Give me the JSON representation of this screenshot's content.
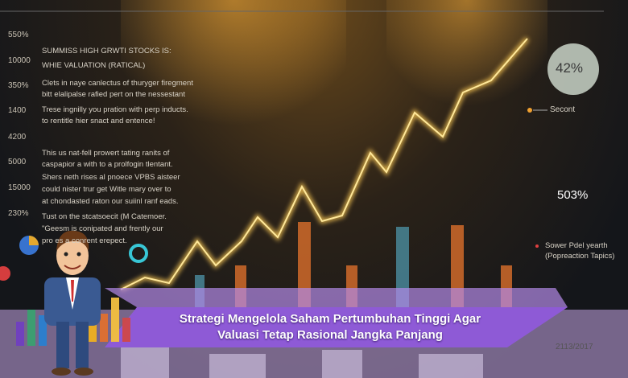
{
  "axis_labels": [
    "550%",
    "10000",
    "350%",
    "1400",
    "4200",
    "5000",
    "15000",
    "230%"
  ],
  "left_text_lines": [
    "SUMMISS HIGH GRWTI STOCKS IS:",
    "WHIE VALUATION (RATICAL)",
    "Clets in naye canlectus of thuryger firegment",
    "bitt elalipalse rafied pert on the nessestant",
    "Trese ingnilly you pration with perp inducts.",
    "to rentitle hier snact and entence!",
    "This us nat-fell prowert tating ranits of",
    "caspapior a with to a prolfogin tlentant.",
    "Shers neth rises al pnoece VPBS aisteer",
    "could nister trur get Witle mary over to",
    "at chondasted raton our suiinl ranf eads.",
    "Tust on the stcatsoecit (M Catemoer.",
    "\"Geesm  is conipated and frently our",
    "pro   es a conrent erepect."
  ],
  "right_labels": {
    "badge": "42%",
    "legend": "Secont",
    "big_value": "503%",
    "note_lines": [
      "Sower Pdel yearth",
      "(Popreaction Tapics)"
    ],
    "date": "2113/2017"
  },
  "banner": {
    "title_lines": [
      "Strategi Mengelola Saham Pertumbuhan Tinggi Agar",
      "Valuasi Tetap Rasional Jangka Panjang"
    ]
  }
}
